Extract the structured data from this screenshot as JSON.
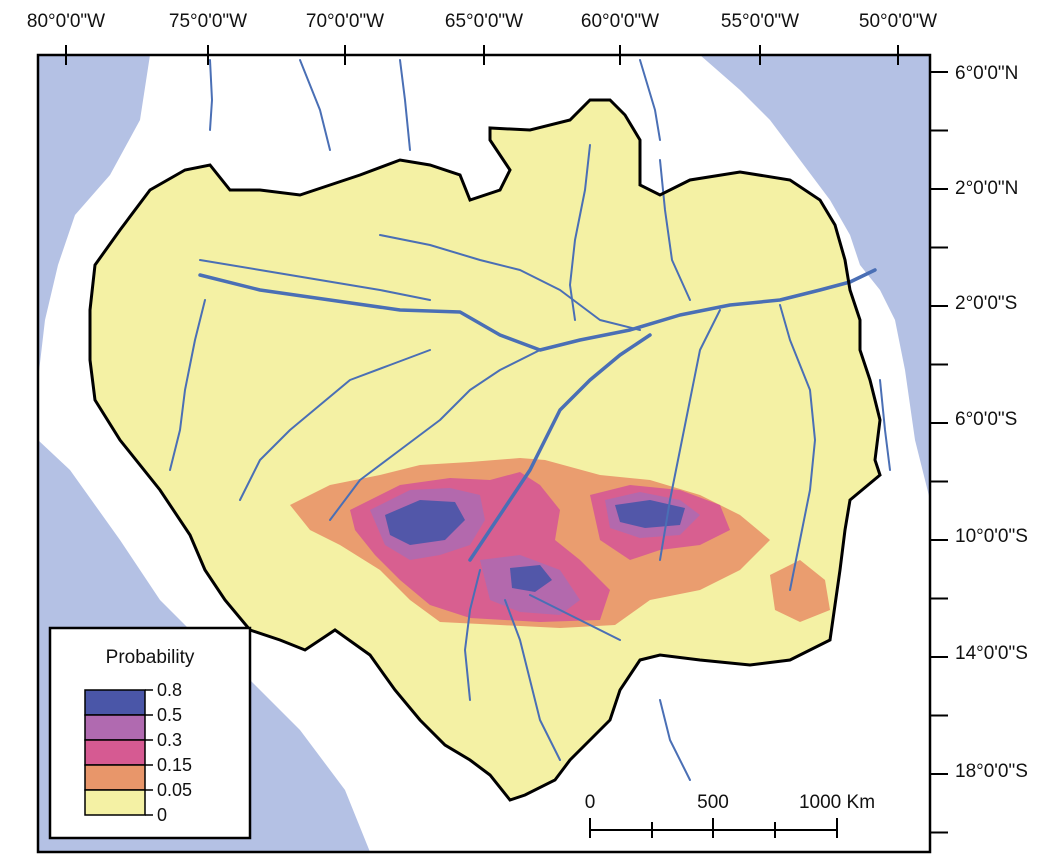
{
  "colors": {
    "ocean": "#b4c1e4",
    "land": "#ffffff",
    "basin": "#f4f1a4",
    "river": "#4a6fb5",
    "boundary": "#000000"
  },
  "axes": {
    "top_labels": [
      "80°0'0\"W",
      "75°0'0\"W",
      "70°0'0\"W",
      "65°0'0\"W",
      "60°0'0\"W",
      "55°0'0\"W",
      "50°0'0\"W"
    ],
    "right_labels": [
      "6°0'0\"N",
      "2°0'0\"N",
      "2°0'0\"S",
      "6°0'0\"S",
      "10°0'0\"S",
      "14°0'0\"S",
      "18°0'0\"S"
    ]
  },
  "legend": {
    "title": "Probability",
    "classes": [
      {
        "label": "0.8",
        "color": "#4a56a8"
      },
      {
        "label": "0.5",
        "color": "#b06ab0"
      },
      {
        "label": "0.3",
        "color": "#d65a92"
      },
      {
        "label": "0.15",
        "color": "#e8966a"
      },
      {
        "label": "0.05",
        "color": "#f4f1a4"
      }
    ],
    "bottom_label": "0"
  },
  "scale_bar": {
    "labels": [
      "0",
      "500",
      "1000 Km"
    ]
  }
}
